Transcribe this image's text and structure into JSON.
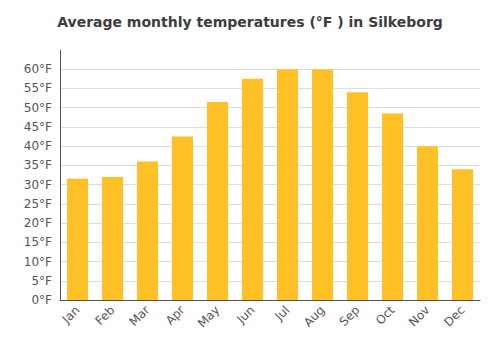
{
  "chart_data": {
    "type": "bar",
    "title": "Average monthly temperatures (°F ) in Silkeborg",
    "categories": [
      "Jan",
      "Feb",
      "Mar",
      "Apr",
      "May",
      "Jun",
      "Jul",
      "Aug",
      "Sep",
      "Oct",
      "Nov",
      "Dec"
    ],
    "values": [
      31.5,
      32.0,
      36.0,
      42.5,
      51.5,
      57.5,
      60.0,
      60.0,
      54.0,
      48.5,
      40.0,
      34.0
    ],
    "color": "#FFC125",
    "ylim": [
      0,
      65
    ],
    "yticks": [
      {
        "value": 0,
        "label": "0°F"
      },
      {
        "value": 5,
        "label": "5°F"
      },
      {
        "value": 10,
        "label": "10°F"
      },
      {
        "value": 15,
        "label": "15°F"
      },
      {
        "value": 20,
        "label": "20°F"
      },
      {
        "value": 25,
        "label": "25°F"
      },
      {
        "value": 30,
        "label": "30°F"
      },
      {
        "value": 35,
        "label": "35°F"
      },
      {
        "value": 40,
        "label": "40°F"
      },
      {
        "value": 45,
        "label": "45°F"
      },
      {
        "value": 50,
        "label": "50°F"
      },
      {
        "value": 55,
        "label": "55°F"
      },
      {
        "value": 60,
        "label": "60°F"
      }
    ],
    "grid": true
  }
}
